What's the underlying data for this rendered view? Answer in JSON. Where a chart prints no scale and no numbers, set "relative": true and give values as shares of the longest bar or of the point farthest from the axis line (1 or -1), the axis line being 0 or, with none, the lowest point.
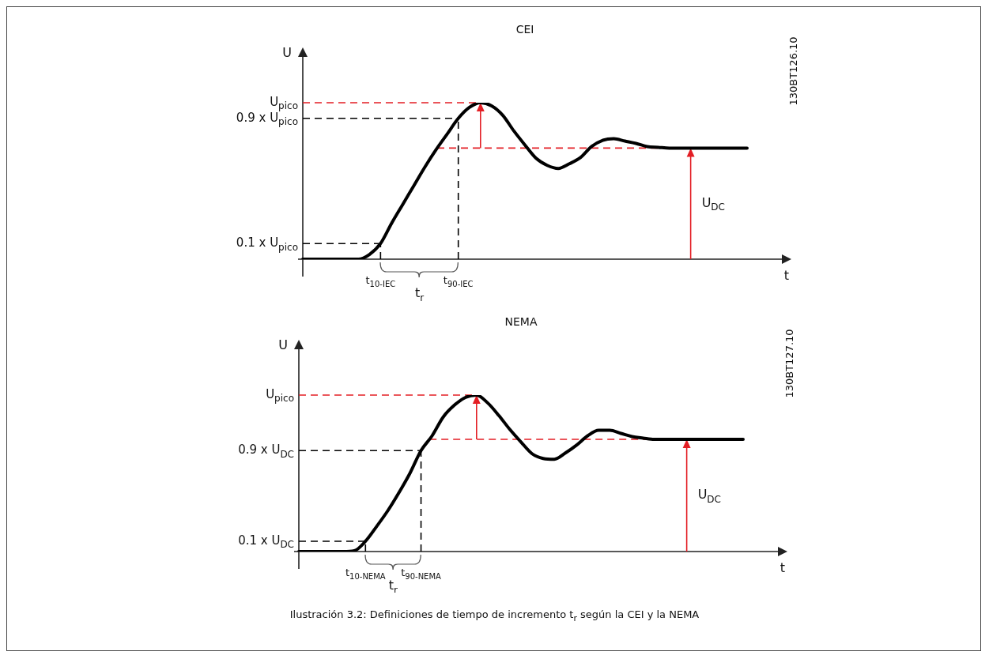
{
  "chart_data": [
    {
      "type": "line",
      "title": "CEI",
      "xlabel": "t",
      "ylabel": "U",
      "relative": true,
      "categories": [
        null,
        null,
        null,
        null,
        null,
        null,
        null,
        "t$_{10-IEC}$",
        null,
        null,
        null,
        null,
        null,
        null,
        "t$_{90-IEC}$",
        null,
        null,
        null,
        null,
        null,
        null,
        null,
        null,
        null,
        null,
        null,
        null,
        null,
        null,
        null,
        null,
        null,
        null,
        null,
        null,
        null,
        null,
        null,
        null,
        null,
        null
      ],
      "series": [
        {
          "color": "#000000",
          "values": [
            0,
            0,
            0,
            0,
            0,
            0,
            0.03,
            0.1,
            0.23,
            0.35,
            0.47,
            0.59,
            0.7,
            0.8,
            0.9,
            0.97,
            1,
            0.98,
            0.92,
            0.82,
            0.73,
            0.645,
            0.6,
            0.58,
            0.61,
            0.65,
            0.72,
            0.76,
            0.77,
            0.755,
            0.74,
            0.72,
            0.715,
            0.71,
            0.71,
            0.71,
            0.71,
            0.71,
            0.71,
            0.71,
            0.71
          ]
        }
      ],
      "ref_lines": [
        {
          "axis": "y",
          "value": 1,
          "label": "U$_{pico}$",
          "color": "#e31e24",
          "line_style": "dashed"
        },
        {
          "axis": "y",
          "value": 0.9,
          "label": "0.9 x U$_{pico}$",
          "color": "#000000",
          "line_style": "dashed"
        },
        {
          "axis": "y",
          "value": 0.1,
          "label": "0.1 x U$_{pico}$",
          "color": "#000000",
          "line_style": "dashed"
        },
        {
          "axis": "y",
          "value": 0.71,
          "color": "#e31e24",
          "line_style": "dashed"
        }
      ],
      "annotations": [
        "130BT126.10",
        "t$_{r}$",
        "U$_{DC}$"
      ],
      "marker": "none",
      "line_style": "solid",
      "legend": false
    },
    {
      "type": "line",
      "title": "NEMA",
      "xlabel": "t",
      "ylabel": "U",
      "relative": true,
      "categories": [
        null,
        null,
        null,
        null,
        null,
        null,
        "t$_{10-NEMA}$",
        null,
        null,
        null,
        null,
        "t$_{90-NEMA}$",
        null,
        null,
        null,
        null,
        null,
        null,
        null,
        null,
        null,
        null,
        null,
        null,
        null,
        null,
        null,
        null,
        null,
        null,
        null,
        null,
        null,
        null,
        null,
        null,
        null,
        null,
        null,
        null,
        null
      ],
      "series": [
        {
          "color": "#000000",
          "values": [
            0,
            0,
            0,
            0,
            0,
            0.005,
            0.066,
            0.16,
            0.26,
            0.375,
            0.5,
            0.645,
            0.74,
            0.86,
            0.935,
            0.985,
            1,
            0.95,
            0.87,
            0.78,
            0.7,
            0.625,
            0.595,
            0.59,
            0.63,
            0.68,
            0.74,
            0.775,
            0.775,
            0.755,
            0.735,
            0.725,
            0.717,
            0.717,
            0.717,
            0.717,
            0.717,
            0.717,
            0.717,
            0.717,
            0.717
          ]
        }
      ],
      "ref_lines": [
        {
          "axis": "y",
          "value": 1,
          "label": "U$_{pico}$",
          "color": "#e31e24",
          "line_style": "dashed"
        },
        {
          "axis": "y",
          "value": 0.645,
          "label": "0.9 x U$_{DC}$",
          "color": "#000000",
          "line_style": "dashed"
        },
        {
          "axis": "y",
          "value": 0.066,
          "label": "0.1 x U$_{DC}$",
          "color": "#000000",
          "line_style": "dashed"
        },
        {
          "axis": "y",
          "value": 0.717,
          "color": "#e31e24",
          "line_style": "dashed"
        }
      ],
      "annotations": [
        "130BT127.10",
        "t$_{r}$",
        "U$_{DC}$",
        "Ilustración 3.2: Definiciones de tiempo de incremento t$_{r}$ según la CEI y la NEMA"
      ],
      "marker": "none",
      "line_style": "solid",
      "legend": false
    }
  ]
}
